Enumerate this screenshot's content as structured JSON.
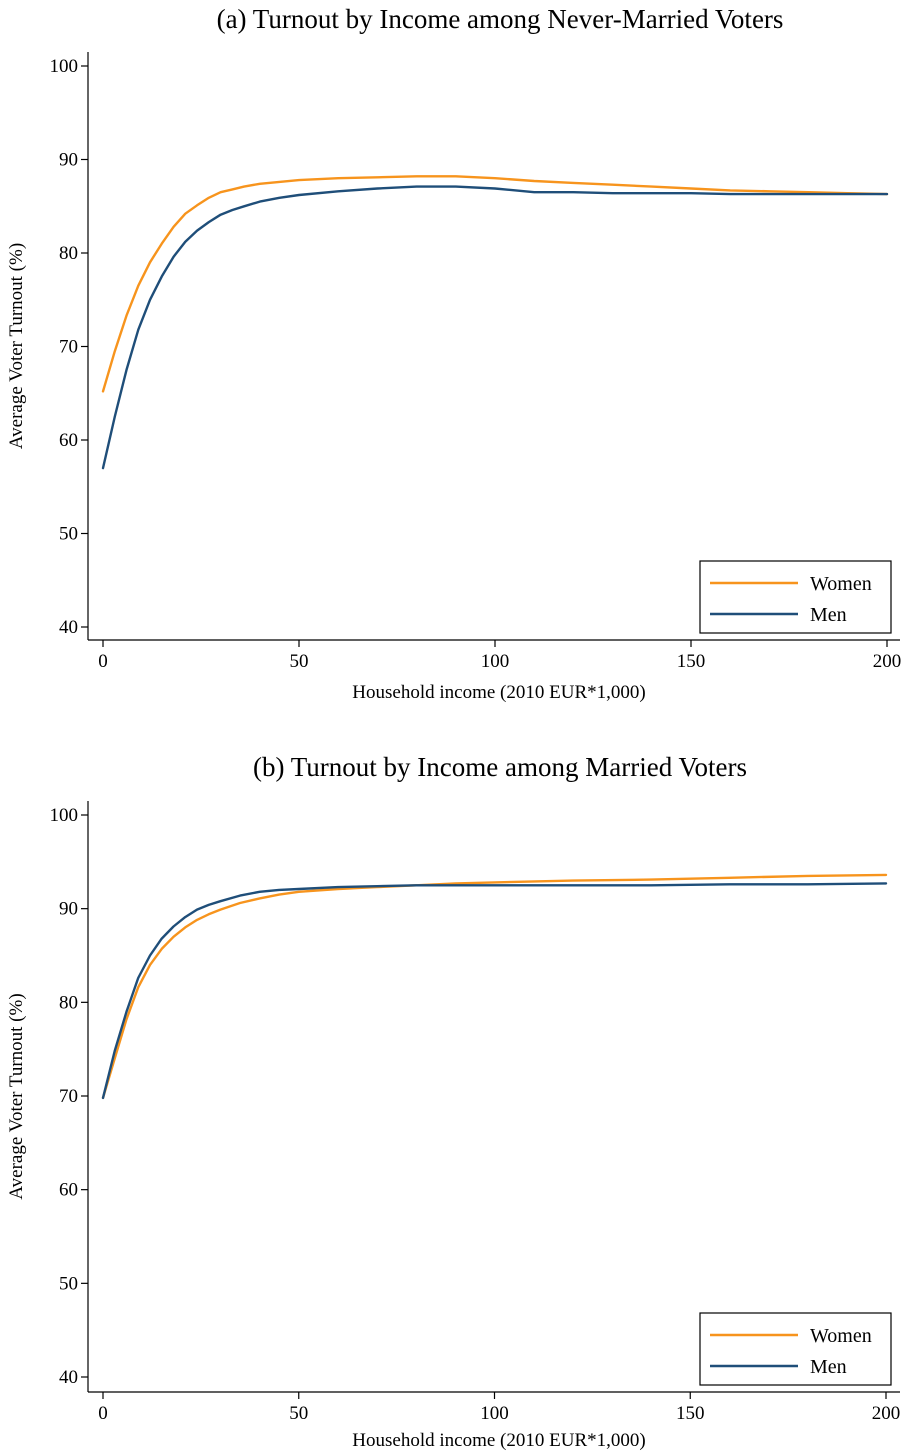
{
  "chart_data": [
    {
      "type": "line",
      "title": "(a) Turnout by Income among Never-Married Voters",
      "xlabel": "Household income (2010 EUR*1,000)",
      "ylabel": "Average Voter Turnout (%)",
      "xlim": [
        0,
        200
      ],
      "ylim": [
        40,
        100
      ],
      "xticks": [
        0,
        50,
        100,
        150,
        200
      ],
      "yticks": [
        40,
        50,
        60,
        70,
        80,
        90,
        100
      ],
      "grid": false,
      "legend_position": "bottom-right",
      "series": [
        {
          "name": "Women",
          "color": "#F7941D",
          "x": [
            0,
            3,
            6,
            9,
            12,
            15,
            18,
            21,
            24,
            27,
            30,
            33,
            36,
            40,
            45,
            50,
            60,
            70,
            80,
            90,
            100,
            110,
            120,
            130,
            140,
            150,
            160,
            170,
            180,
            190,
            200
          ],
          "y": [
            65.2,
            69.5,
            73.3,
            76.5,
            79.0,
            81.0,
            82.8,
            84.2,
            85.1,
            85.9,
            86.5,
            86.8,
            87.1,
            87.4,
            87.6,
            87.8,
            88.0,
            88.1,
            88.2,
            88.2,
            88.0,
            87.7,
            87.5,
            87.3,
            87.1,
            86.9,
            86.7,
            86.6,
            86.5,
            86.4,
            86.3
          ]
        },
        {
          "name": "Men",
          "color": "#1F4E79",
          "x": [
            0,
            3,
            6,
            9,
            12,
            15,
            18,
            21,
            24,
            27,
            30,
            33,
            36,
            40,
            45,
            50,
            60,
            70,
            80,
            90,
            100,
            110,
            120,
            130,
            140,
            150,
            160,
            170,
            180,
            190,
            200
          ],
          "y": [
            57.0,
            62.5,
            67.5,
            71.8,
            75.0,
            77.5,
            79.6,
            81.2,
            82.4,
            83.3,
            84.1,
            84.6,
            85.0,
            85.5,
            85.9,
            86.2,
            86.6,
            86.9,
            87.1,
            87.1,
            86.9,
            86.5,
            86.5,
            86.4,
            86.4,
            86.4,
            86.3,
            86.3,
            86.3,
            86.3,
            86.3
          ]
        }
      ]
    },
    {
      "type": "line",
      "title": "(b) Turnout by Income among Married Voters",
      "xlabel": "Household income (2010 EUR*1,000)",
      "ylabel": "Average Voter Turnout (%)",
      "xlim": [
        0,
        200
      ],
      "ylim": [
        40,
        100
      ],
      "xticks": [
        0,
        50,
        100,
        150,
        200
      ],
      "yticks": [
        40,
        50,
        60,
        70,
        80,
        90,
        100
      ],
      "grid": false,
      "legend_position": "bottom-right",
      "series": [
        {
          "name": "Women",
          "color": "#F7941D",
          "x": [
            0,
            3,
            6,
            9,
            12,
            15,
            18,
            21,
            24,
            27,
            30,
            35,
            40,
            45,
            50,
            60,
            70,
            80,
            90,
            100,
            120,
            140,
            160,
            180,
            200
          ],
          "y": [
            69.8,
            74.0,
            78.2,
            81.6,
            84.0,
            85.7,
            87.0,
            88.0,
            88.8,
            89.4,
            89.9,
            90.6,
            91.1,
            91.5,
            91.8,
            92.1,
            92.3,
            92.5,
            92.7,
            92.8,
            93.0,
            93.1,
            93.3,
            93.5,
            93.6
          ]
        },
        {
          "name": "Men",
          "color": "#1F4E79",
          "x": [
            0,
            3,
            6,
            9,
            12,
            15,
            18,
            21,
            24,
            27,
            30,
            35,
            40,
            45,
            50,
            60,
            70,
            80,
            90,
            100,
            120,
            140,
            160,
            180,
            200
          ],
          "y": [
            69.8,
            74.8,
            79.0,
            82.6,
            85.0,
            86.8,
            88.1,
            89.1,
            89.9,
            90.4,
            90.8,
            91.4,
            91.8,
            92.0,
            92.1,
            92.3,
            92.4,
            92.5,
            92.5,
            92.5,
            92.5,
            92.5,
            92.6,
            92.6,
            92.7
          ]
        }
      ]
    }
  ]
}
